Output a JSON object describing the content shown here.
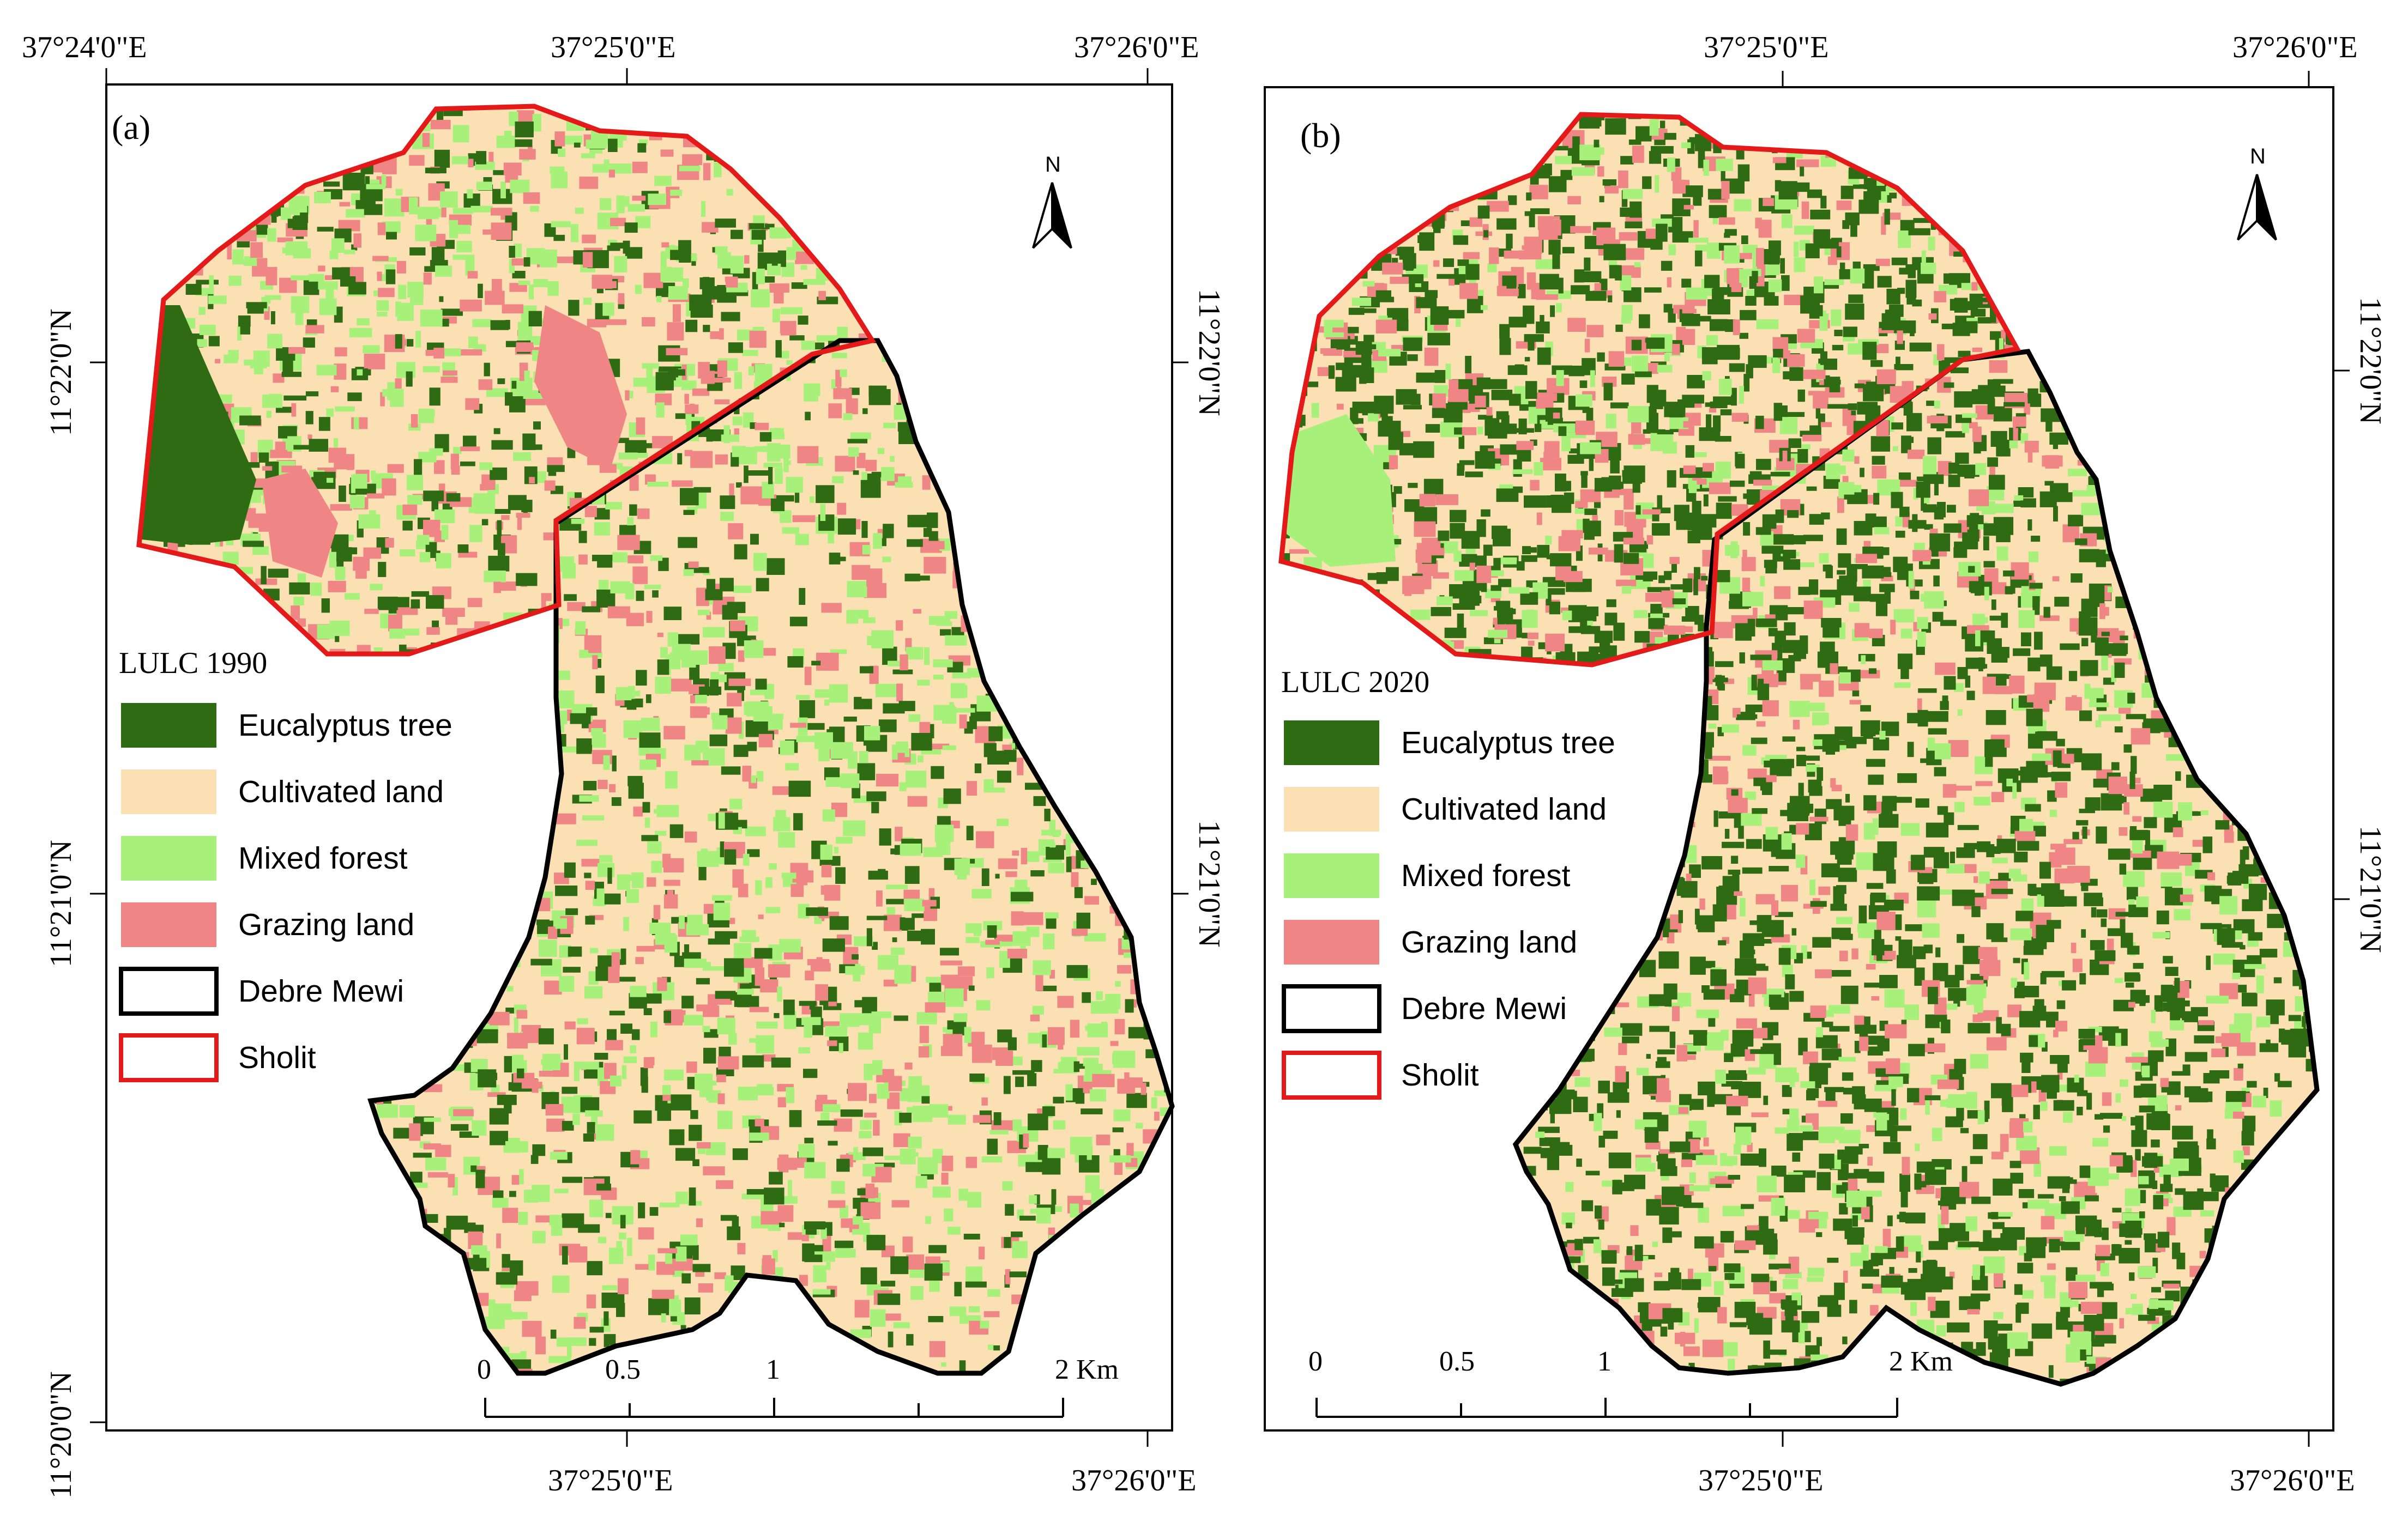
{
  "colors": {
    "eucalyptus": "#2e6b12",
    "cultivated": "#fae0b2",
    "mixed_forest": "#a7f07a",
    "grazing": "#ef8585",
    "debre_mewi_outline": "#000000",
    "sholit_outline": "#e41a1a"
  },
  "legend_items": [
    {
      "label": "Eucalyptus tree",
      "color": "#2e6b12",
      "kind": "fill"
    },
    {
      "label": "Cultivated land",
      "color": "#fae0b2",
      "kind": "fill"
    },
    {
      "label": "Mixed forest",
      "color": "#a7f07a",
      "kind": "fill"
    },
    {
      "label": "Grazing land",
      "color": "#ef8585",
      "kind": "fill"
    },
    {
      "label": "Debre Mewi",
      "color": "#000000",
      "kind": "outline"
    },
    {
      "label": "Sholit",
      "color": "#e41a1a",
      "kind": "outline"
    }
  ],
  "panel_a": {
    "label": "(a)",
    "legend_title": "LULC 1990",
    "top_ticks": [
      "37°24'0\"E",
      "37°25'0\"E",
      "37°26'0\"E"
    ],
    "bottom_ticks": [
      "37°25'0\"E",
      "37°26'0\"E"
    ],
    "left_ticks": [
      "11°22'0\"N",
      "11°21'0\"N",
      "11°20'0\"N"
    ],
    "right_ticks": [
      "11°22'0\"N",
      "11°21'0\"N"
    ]
  },
  "panel_b": {
    "label": "(b)",
    "legend_title": "LULC 2020",
    "top_ticks": [
      "37°25'0\"E",
      "37°26'0\"E"
    ],
    "bottom_ticks": [
      "37°25'0\"E",
      "37°26'0\"E"
    ],
    "right_ticks": [
      "11°22'0\"N",
      "11°21'0\"N"
    ]
  },
  "scale_bar": {
    "labels": [
      "0",
      "0.5",
      "1",
      "2 Km"
    ]
  },
  "north_arrow": {
    "label": "N"
  }
}
